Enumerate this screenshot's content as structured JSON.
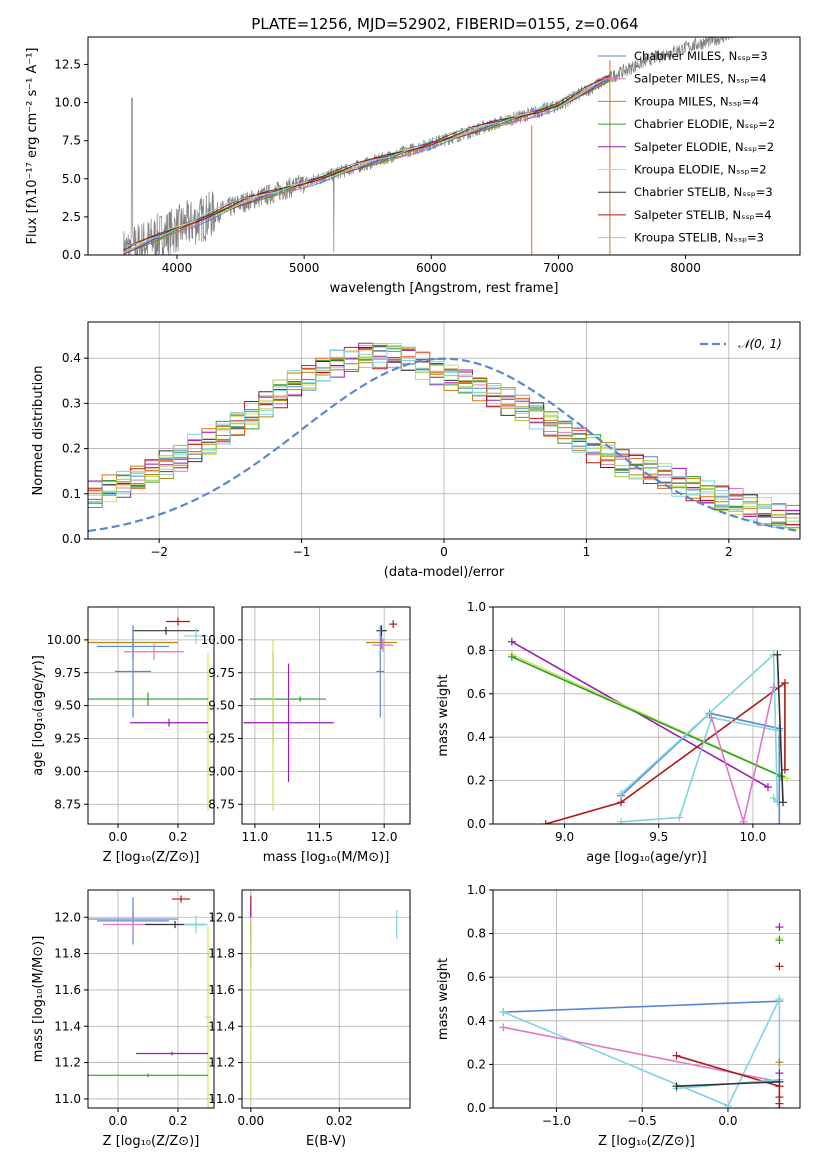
{
  "title": "PLATE=1256, MJD=52902, FIBERID=0155, z=0.064",
  "colors": {
    "spectrum": "#808080",
    "grid": "#b0b0b0",
    "normal_curve": "#5b87d2",
    "series": [
      "#5b87d2",
      "#e377c2",
      "#b8860b",
      "#2ca02c",
      "#9f1ab5",
      "#c8e65a",
      "#333333",
      "#b01818",
      "#7fd4e0"
    ],
    "highlight": [
      "#e06d1f",
      "#5b87d2",
      "#7fd4e0",
      "#a7c93a",
      "#9f1ab5"
    ]
  },
  "chart_data": [
    {
      "id": "spectrum",
      "type": "line",
      "xlabel": "wavelength [Angstrom, rest frame]",
      "ylabel": "Flux [fλ10⁻¹⁷ erg cm⁻² s⁻¹ A⁻¹]",
      "xlim": [
        3300,
        8900
      ],
      "ylim": [
        0,
        14.3
      ],
      "xticks": [
        "4000",
        "5000",
        "6000",
        "7000",
        "8000"
      ],
      "yticks": [
        "0.0",
        "2.5",
        "5.0",
        "7.5",
        "10.0",
        "12.5"
      ],
      "grid": false,
      "legend_position": "top-right",
      "continuum": {
        "x": [
          3580,
          4000,
          4500,
          5000,
          5500,
          6000,
          6500,
          7000,
          7400,
          7700,
          8000,
          8300,
          8500
        ],
        "y": [
          0.2,
          1.7,
          3.4,
          4.7,
          6.0,
          7.3,
          8.6,
          9.8,
          11.6,
          12.8,
          13.6,
          14.3,
          14.8
        ]
      },
      "models_end": 7400,
      "legend": [
        "Chabrier MILES, Nₛₛₚ=3",
        "Salpeter MILES, Nₛₛₚ=4",
        "Kroupa MILES, Nₛₛₚ=4",
        "Chabrier ELODIE, Nₛₛₚ=2",
        "Salpeter ELODIE, Nₛₛₚ=2",
        "Kroupa ELODIE, Nₛₛₚ=2",
        "Chabrier STELIB, Nₛₛₚ=3",
        "Salpeter STELIB, Nₛₛₚ=4",
        "Kroupa STELIB, Nₛₛₚ=3"
      ]
    },
    {
      "id": "residuals",
      "type": "line",
      "xlabel": "(data-model)/error",
      "ylabel": "Normed distribution",
      "xlim": [
        -2.5,
        2.5
      ],
      "ylim": [
        0,
        0.48
      ],
      "xticks": [
        "−2",
        "−1",
        "0",
        "1",
        "2"
      ],
      "yticks": [
        "0.0",
        "0.1",
        "0.2",
        "0.3",
        "0.4"
      ],
      "grid": true,
      "legend_position": "top-right",
      "legend": [
        "𝒩(0, 1)"
      ],
      "bin_width": 0.1,
      "base_hist": [
        0.02,
        0.025,
        0.03,
        0.04,
        0.05,
        0.06,
        0.065,
        0.075,
        0.08,
        0.09,
        0.1,
        0.11,
        0.12,
        0.135,
        0.15,
        0.165,
        0.18,
        0.2,
        0.215,
        0.235,
        0.255,
        0.275,
        0.3,
        0.32,
        0.345,
        0.36,
        0.375,
        0.39,
        0.4,
        0.41,
        0.405,
        0.41,
        0.4,
        0.385,
        0.37,
        0.36,
        0.35,
        0.335,
        0.32,
        0.305,
        0.29,
        0.275,
        0.255,
        0.24,
        0.22,
        0.2,
        0.185,
        0.17,
        0.16,
        0.15,
        0.14,
        0.125,
        0.11,
        0.1,
        0.09,
        0.08,
        0.07,
        0.06,
        0.05,
        0.045,
        0.04,
        0.035,
        0.03,
        0.025,
        0.025,
        0.02,
        0.02,
        0.018,
        0.016,
        0.015
      ]
    },
    {
      "id": "age_vs_Z",
      "type": "scatter",
      "xlabel": "Z [log₁₀(Z/Z⊙)]",
      "ylabel": "age  [log₁₀(age/yr)]",
      "xlim": [
        -0.1,
        0.32
      ],
      "ylim": [
        8.6,
        10.25
      ],
      "xticks": [
        "0.0",
        "0.2"
      ],
      "yticks": [
        "8.75",
        "9.00",
        "9.25",
        "9.50",
        "9.75",
        "10.00"
      ],
      "grid": true,
      "points": [
        {
          "x": 0.2,
          "y": 10.14,
          "xerr": 0.04,
          "yerr": 0.03,
          "series": 7
        },
        {
          "x": 0.16,
          "y": 10.07,
          "xerr": 0.11,
          "yerr": 0.03,
          "series": 6
        },
        {
          "x": 0.05,
          "y": 9.98,
          "xerr": 0.15,
          "yerr": 0.12,
          "series": 2
        },
        {
          "x": 0.05,
          "y": 9.95,
          "xerr": 0.12,
          "yerr": 0.08,
          "series": 0
        },
        {
          "x": 0.05,
          "y": 9.76,
          "xerr": 0.06,
          "yerr": 0.35,
          "series": 10
        },
        {
          "x": 0.12,
          "y": 9.91,
          "xerr": 0.1,
          "yerr": 0.06,
          "series": 1
        },
        {
          "x": 0.26,
          "y": 10.03,
          "xerr": 0.04,
          "yerr": 0.06,
          "series": 8
        },
        {
          "x": 0.3,
          "y": 9.3,
          "xerr": 0.01,
          "yerr": 0.6,
          "series": 5
        },
        {
          "x": 0.1,
          "y": 9.55,
          "xerr": 0.2,
          "yerr": 0.05,
          "series": 3
        },
        {
          "x": 0.17,
          "y": 9.37,
          "xerr": 0.13,
          "yerr": 0.03,
          "series": 4
        }
      ]
    },
    {
      "id": "age_vs_mass",
      "type": "scatter",
      "xlabel": "mass [log₁₀(M/M⊙)]",
      "ylabel": "",
      "xlim": [
        10.9,
        12.2
      ],
      "ylim": [
        8.6,
        10.25
      ],
      "xticks": [
        "11.0",
        "11.5",
        "12.0"
      ],
      "yticks": [
        "8.75",
        "9.00",
        "9.25",
        "9.50",
        "9.75",
        "10.00"
      ],
      "grid": true,
      "points": [
        {
          "x": 12.07,
          "y": 10.12,
          "xerr": 0.03,
          "yerr": 0.03,
          "series": 7
        },
        {
          "x": 11.98,
          "y": 10.07,
          "xerr": 0.04,
          "yerr": 0.04,
          "series": 6
        },
        {
          "x": 11.98,
          "y": 9.98,
          "xerr": 0.12,
          "yerr": 0.05,
          "series": 2
        },
        {
          "x": 11.97,
          "y": 9.76,
          "xerr": 0.03,
          "yerr": 0.35,
          "series": 10
        },
        {
          "x": 11.99,
          "y": 9.96,
          "xerr": 0.08,
          "yerr": 0.05,
          "series": 1
        },
        {
          "x": 11.14,
          "y": 9.55,
          "xerr": 0.18,
          "yerr": 0.35,
          "series": 3
        },
        {
          "x": 11.14,
          "y": 9.35,
          "xerr": 0.01,
          "yerr": 0.65,
          "series": 5
        },
        {
          "x": 11.26,
          "y": 9.37,
          "xerr": 0.35,
          "yerr": 0.45,
          "series": 4
        },
        {
          "x": 11.35,
          "y": 9.55,
          "xerr": 0.2,
          "yerr": 0.02,
          "series": 3
        }
      ]
    },
    {
      "id": "weight_vs_age",
      "type": "line",
      "xlabel": "age  [log₁₀(age/yr)]",
      "ylabel": "mass weight",
      "xlim": [
        8.62,
        10.25
      ],
      "ylim": [
        0,
        1.0
      ],
      "xticks": [
        "9.0",
        "9.5",
        "10.0"
      ],
      "yticks": [
        "0.0",
        "0.2",
        "0.4",
        "0.6",
        "0.8",
        "1.0"
      ],
      "grid": true,
      "series": [
        {
          "color": 4,
          "x": [
            8.72,
            10.08
          ],
          "y": [
            0.84,
            0.17
          ]
        },
        {
          "color": 5,
          "x": [
            8.72,
            10.18
          ],
          "y": [
            0.78,
            0.21
          ]
        },
        {
          "color": 3,
          "x": [
            8.72,
            10.15
          ],
          "y": [
            0.77,
            0.22
          ]
        },
        {
          "color": 7,
          "x": [
            8.9,
            9.3,
            10.17,
            10.17
          ],
          "y": [
            0.0,
            0.1,
            0.65,
            0.25
          ]
        },
        {
          "color": 0,
          "x": [
            9.3,
            9.77,
            10.14,
            10.14
          ],
          "y": [
            0.13,
            0.51,
            0.44,
            0.0
          ]
        },
        {
          "color": 8,
          "x": [
            9.3,
            10.11,
            10.13,
            10.11
          ],
          "y": [
            0.14,
            0.78,
            0.1,
            0.12
          ]
        },
        {
          "color": 11,
          "x": [
            9.3,
            9.61,
            9.78,
            10.14
          ],
          "y": [
            0.01,
            0.03,
            0.49,
            0.43
          ]
        },
        {
          "color": 1,
          "x": [
            9.78,
            9.95,
            10.11
          ],
          "y": [
            0.49,
            0.01,
            0.63
          ]
        },
        {
          "color": 6,
          "x": [
            10.13,
            10.16
          ],
          "y": [
            0.78,
            0.1
          ]
        }
      ]
    },
    {
      "id": "mass_vs_Z",
      "type": "scatter",
      "xlabel": "Z [log₁₀(Z/Z⊙)]",
      "ylabel": "mass [log₁₀(M/M⊙)]",
      "xlim": [
        -0.1,
        0.32
      ],
      "ylim": [
        10.95,
        12.15
      ],
      "xticks": [
        "0.0",
        "0.2"
      ],
      "yticks": [
        "11.0",
        "11.2",
        "11.4",
        "11.6",
        "11.8",
        "12.0"
      ],
      "grid": true,
      "points": [
        {
          "x": 0.21,
          "y": 12.1,
          "xerr": 0.03,
          "yerr": 0.02,
          "series": 7
        },
        {
          "x": 0.05,
          "y": 11.98,
          "xerr": 0.12,
          "yerr": 0.13,
          "series": 10
        },
        {
          "x": 0.05,
          "y": 11.99,
          "xerr": 0.15,
          "yerr": 0.05,
          "series": 0
        },
        {
          "x": 0.05,
          "y": 11.96,
          "xerr": 0.1,
          "yerr": 0.04,
          "series": 1
        },
        {
          "x": 0.19,
          "y": 11.96,
          "xerr": 0.1,
          "yerr": 0.02,
          "series": 6
        },
        {
          "x": 0.26,
          "y": 11.96,
          "xerr": 0.04,
          "yerr": 0.05,
          "series": 8
        },
        {
          "x": 0.3,
          "y": 11.45,
          "xerr": 0.01,
          "yerr": 0.5,
          "series": 5
        },
        {
          "x": 0.18,
          "y": 11.25,
          "xerr": 0.12,
          "yerr": 0.01,
          "series": 4
        },
        {
          "x": 0.1,
          "y": 11.13,
          "xerr": 0.2,
          "yerr": 0.01,
          "series": 3
        }
      ]
    },
    {
      "id": "mass_vs_EBV",
      "type": "scatter",
      "xlabel": "E(B-V)",
      "ylabel": "",
      "xlim": [
        -0.002,
        0.036
      ],
      "ylim": [
        10.95,
        12.15
      ],
      "xticks": [
        "0.00",
        "0.02"
      ],
      "yticks": [
        "11.0",
        "11.2",
        "11.4",
        "11.6",
        "11.8",
        "12.0"
      ],
      "grid": true,
      "points": [
        {
          "x": 0.0,
          "y": 12.0,
          "xerr": 0.0,
          "yerr": 0.12,
          "series": 7
        },
        {
          "x": 0.0,
          "y": 11.9,
          "xerr": 0.0,
          "yerr": 0.18,
          "series": 4
        },
        {
          "x": 0.0,
          "y": 11.5,
          "xerr": 0.0,
          "yerr": 0.5,
          "series": 5
        },
        {
          "x": 0.033,
          "y": 11.96,
          "xerr": 0.0,
          "yerr": 0.08,
          "series": 8
        }
      ]
    },
    {
      "id": "weight_vs_Z",
      "type": "line",
      "xlabel": "Z [log₁₀(Z/Z⊙)]",
      "ylabel": "mass weight",
      "xlim": [
        -1.37,
        0.42
      ],
      "ylim": [
        0,
        1.0
      ],
      "xticks": [
        "−1.0",
        "−0.5",
        "0.0"
      ],
      "yticks": [
        "0.0",
        "0.2",
        "0.4",
        "0.6",
        "0.8",
        "1.0"
      ],
      "grid": true,
      "series": [
        {
          "color": 0,
          "x": [
            -1.31,
            0.3
          ],
          "y": [
            0.44,
            0.49
          ]
        },
        {
          "color": 11,
          "x": [
            -1.31,
            0.0,
            0.3,
            0.3
          ],
          "y": [
            0.44,
            0.01,
            0.5,
            0.1
          ]
        },
        {
          "color": 1,
          "x": [
            -1.31,
            0.3
          ],
          "y": [
            0.37,
            0.12
          ]
        },
        {
          "color": 7,
          "x": [
            -0.3,
            0.3,
            0.3
          ],
          "y": [
            0.24,
            0.1,
            0.0
          ]
        },
        {
          "color": 8,
          "x": [
            -0.3,
            0.3
          ],
          "y": [
            0.09,
            0.13
          ]
        },
        {
          "color": 6,
          "x": [
            -0.3,
            0.3
          ],
          "y": [
            0.1,
            0.12
          ]
        }
      ],
      "markers": [
        {
          "x": 0.3,
          "y": 0.83,
          "series": 4
        },
        {
          "x": 0.3,
          "y": 0.78,
          "series": 5
        },
        {
          "x": 0.3,
          "y": 0.77,
          "series": 3
        },
        {
          "x": 0.3,
          "y": 0.65,
          "series": 7
        },
        {
          "x": 0.3,
          "y": 0.21,
          "series": 2
        },
        {
          "x": 0.3,
          "y": 0.16,
          "series": 4
        },
        {
          "x": 0.3,
          "y": 0.05,
          "series": 7
        },
        {
          "x": 0.3,
          "y": 0.02,
          "series": 7
        }
      ]
    }
  ]
}
